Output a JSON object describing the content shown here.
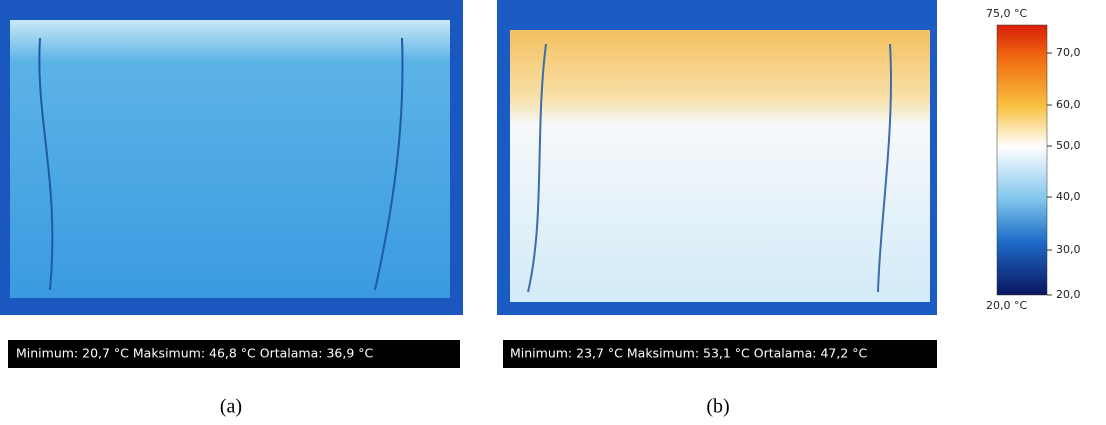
{
  "panels": [
    {
      "stats": "Minimum:  20,7  °C Maksimum:  46,8  °C Ortalama:  36,9  °C",
      "caption": "(a)"
    },
    {
      "stats": "Minimum:  23,7  °C Maksimum:  53,1  °C Ortalama:  47,2  °C",
      "caption": "(b)"
    }
  ],
  "colorbar": {
    "max_label": "75,0 °C",
    "min_label": "20,0 °C",
    "ticks": [
      "70,0",
      "60,0",
      "50,0",
      "40,0",
      "30,0",
      "20,0"
    ]
  }
}
